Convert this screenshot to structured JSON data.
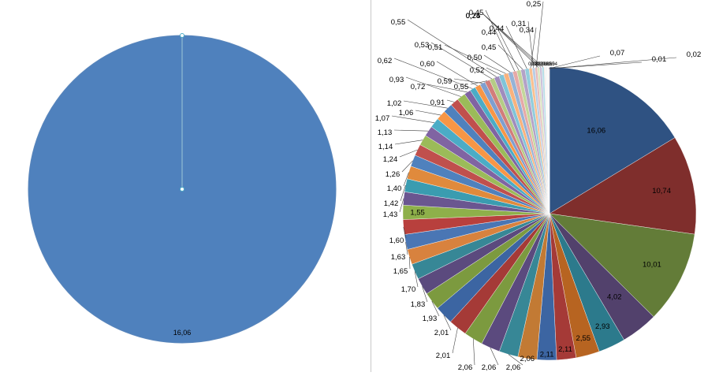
{
  "chart_data": [
    {
      "type": "pie",
      "values": [
        16.06
      ],
      "data_labels": [
        "16,06"
      ],
      "colors": [
        "#4f81bd"
      ]
    },
    {
      "type": "pie",
      "values": [
        16.06,
        10.74,
        10.01,
        4.02,
        2.93,
        2.55,
        2.11,
        2.11,
        2.06,
        2.06,
        2.06,
        2.06,
        2.01,
        2.01,
        1.93,
        1.83,
        1.7,
        1.65,
        1.63,
        1.6,
        1.55,
        1.43,
        1.42,
        1.4,
        1.26,
        1.24,
        1.14,
        1.13,
        1.07,
        1.06,
        1.02,
        0.91,
        0.93,
        0.72,
        0.62,
        0.6,
        0.59,
        0.55,
        0.53,
        0.55,
        0.52,
        0.51,
        0.5,
        0.45,
        0.44,
        0.45,
        0.44,
        0.34,
        0.31,
        0.25,
        0.24,
        0.25,
        0.24,
        0.07,
        0.07,
        0.07,
        0.06,
        0.06,
        0.05,
        0.05,
        0.04,
        0.07,
        0.01,
        0.02
      ],
      "data_labels": [
        "16,06",
        "10,74",
        "10,01",
        "4,02",
        "2,93",
        "2,55",
        "2,11",
        "2,11",
        "2,06",
        "2,06",
        "2,06",
        "2,06",
        "2,01",
        "2,01",
        "1,93",
        "1,83",
        "1,70",
        "1,65",
        "1,63",
        "1,60",
        "1,55",
        "1,43",
        "1,42",
        "1,40",
        "1,26",
        "1,24",
        "1,14",
        "1,13",
        "1,07",
        "1,06",
        "1,02",
        "0,91",
        "0,93",
        "0,72",
        "0,62",
        "0,60",
        "0,59",
        "0,55",
        "0,53",
        "0,55",
        "0,52",
        "0,51",
        "0,50",
        "0,45",
        "0,44",
        "0,45",
        "0,44",
        "0,34",
        "0,31",
        "0,25",
        "0,24",
        "0,25",
        "0,24",
        "0,07",
        "0,07",
        "0,07",
        "0,06",
        "0,06",
        "0,05",
        "0,05",
        "0,04",
        "0,07",
        "0,01",
        "0,02"
      ],
      "colors": [
        "#2f5282",
        "#7f2e2c",
        "#637c38",
        "#52416c",
        "#2c7a8c",
        "#b76421",
        "#a53a37",
        "#3c65a2",
        "#c27a34",
        "#378796",
        "#5b4a7e",
        "#7c9a3f",
        "#a53a37",
        "#3c65a2",
        "#7c9a3f",
        "#5b4a7e",
        "#378796",
        "#d8823e",
        "#4a76b4",
        "#b8403d",
        "#8eb04a",
        "#6a5690",
        "#3a9cb0",
        "#e08a3c",
        "#4f81bd",
        "#c0504d",
        "#9bbb59",
        "#8064a2",
        "#4bacc6",
        "#f79646",
        "#4f81bd",
        "#c0504d",
        "#9bbb59",
        "#8064a2",
        "#4bacc6",
        "#f79646",
        "#7f9fcf",
        "#d27d7b",
        "#b5cc85",
        "#a08cbd",
        "#80c4d8",
        "#f9b27d",
        "#95b3d7",
        "#e6a9a7",
        "#c4d79b",
        "#b3a2c7",
        "#92cddc",
        "#fac090",
        "#b9cde5",
        "#e6b9b8",
        "#d7e4bd",
        "#ccc1da",
        "#b7dee8",
        "#fcd5b5",
        "#dbe5f1",
        "#f2dcdb",
        "#ebf1de",
        "#e5e0ec",
        "#dbeef3",
        "#fde9d9",
        "#c5d9f1",
        "#f2c4c3",
        "#d8e4bc",
        "#e4dfec"
      ]
    }
  ]
}
